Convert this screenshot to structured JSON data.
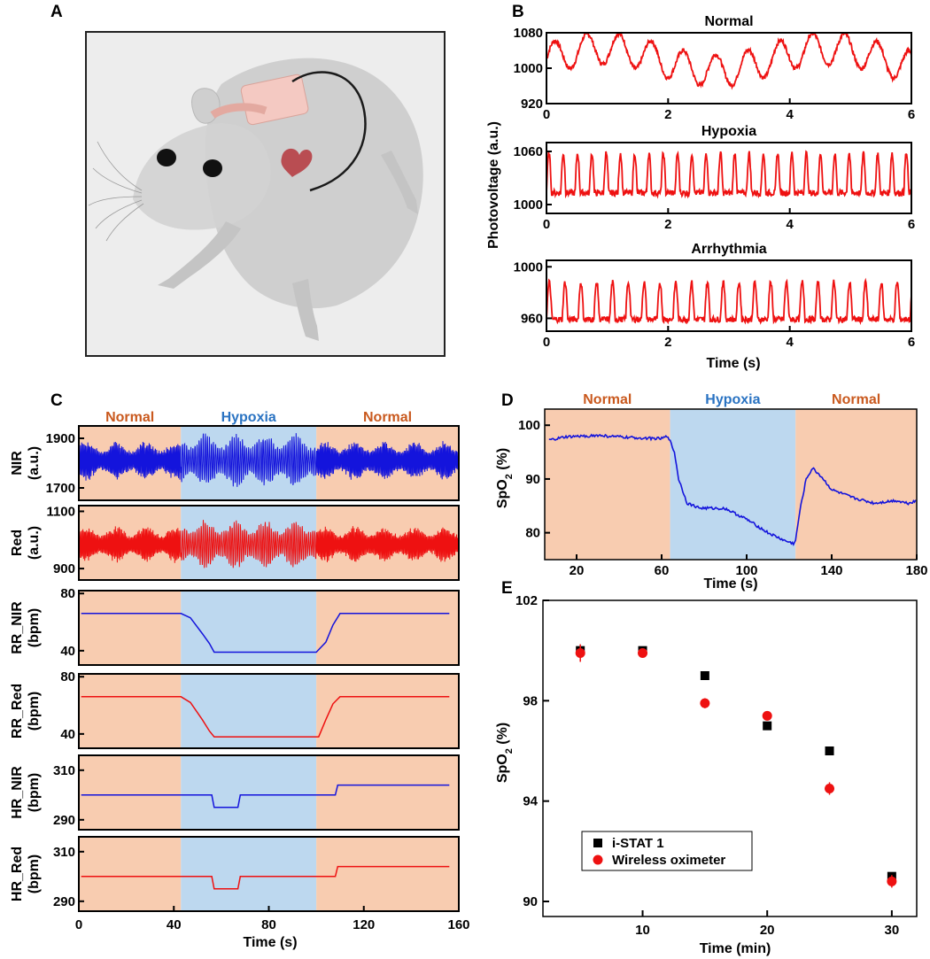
{
  "panel_letters": {
    "a": "A",
    "b": "B",
    "c": "C",
    "d": "D",
    "e": "E"
  },
  "colors": {
    "normal_bg": "#f8ccb0",
    "hypoxia_bg": "#bdd8ef",
    "normal_text": "#c9591e",
    "hypoxia_text": "#2a73c2",
    "nir": "#1414dc",
    "red": "#ee1111"
  },
  "chart_data": [
    {
      "id": "B",
      "type": "line",
      "xlabel": "Time (s)",
      "ylabel": "Photovoltage (a.u.)",
      "xlim": [
        0,
        6
      ],
      "xticks": [
        "0",
        "2",
        "4",
        "6"
      ],
      "subplots": [
        {
          "title": "Normal",
          "ylim": [
            920,
            1080
          ],
          "yticks": [
            "1080",
            "1000",
            "920"
          ],
          "period_s": 0.53,
          "amplitude": 40,
          "baseline": 1040,
          "shape": "irregular"
        },
        {
          "title": "Hypoxia",
          "ylim": [
            990,
            1070
          ],
          "yticks": [
            "1060",
            "1000"
          ],
          "period_s": 0.235,
          "amplitude": 28,
          "baseline": 1030,
          "shape": "pulse"
        },
        {
          "title": "Arrhythmia",
          "ylim": [
            950,
            1005
          ],
          "yticks": [
            "1000",
            "960"
          ],
          "period_s": 0.26,
          "amplitude": 18,
          "baseline": 970,
          "shape": "pulse"
        }
      ]
    },
    {
      "id": "C",
      "type": "line",
      "xlabel": "Time (s)",
      "xlim": [
        0,
        160
      ],
      "xticks": [
        "0",
        "40",
        "80",
        "120",
        "160"
      ],
      "regions": [
        {
          "label": "Normal",
          "start": 0,
          "end": 43
        },
        {
          "label": "Hypoxia",
          "start": 43,
          "end": 100
        },
        {
          "label": "Normal",
          "start": 100,
          "end": 160
        }
      ],
      "subplots": [
        {
          "ylabel": [
            "NIR",
            "(a.u.)"
          ],
          "ylim": [
            1650,
            1950
          ],
          "yticks": [
            "1900",
            "1700"
          ],
          "mean": 1810,
          "amplitude": 70,
          "series": "nir",
          "kind": "osc"
        },
        {
          "ylabel": [
            "Red",
            "(a.u.)"
          ],
          "ylim": [
            860,
            1120
          ],
          "yticks": [
            "1100",
            "900"
          ],
          "mean": 985,
          "amplitude": 55,
          "series": "red",
          "kind": "osc"
        },
        {
          "ylabel": [
            "RR_NIR",
            "(bpm)"
          ],
          "ylim": [
            30,
            82
          ],
          "yticks": [
            "80",
            "40"
          ],
          "series": "nir",
          "kind": "step",
          "points": [
            [
              1,
              66
            ],
            [
              43,
              66
            ],
            [
              47,
              63
            ],
            [
              52,
              52
            ],
            [
              55,
              45
            ],
            [
              57,
              39
            ],
            [
              100,
              39
            ],
            [
              104,
              46
            ],
            [
              107,
              58
            ],
            [
              110,
              66
            ],
            [
              156,
              66
            ]
          ]
        },
        {
          "ylabel": [
            "RR_Red",
            "(bpm)"
          ],
          "ylim": [
            30,
            82
          ],
          "yticks": [
            "80",
            "40"
          ],
          "series": "red",
          "kind": "step",
          "points": [
            [
              1,
              66
            ],
            [
              43,
              66
            ],
            [
              47,
              62
            ],
            [
              52,
              50
            ],
            [
              55,
              42
            ],
            [
              57,
              38
            ],
            [
              101,
              38
            ],
            [
              104,
              50
            ],
            [
              107,
              61
            ],
            [
              110,
              66
            ],
            [
              156,
              66
            ]
          ]
        },
        {
          "ylabel": [
            "HR_NIR",
            "(bpm)"
          ],
          "ylim": [
            286,
            316
          ],
          "yticks": [
            "310",
            "290"
          ],
          "series": "nir",
          "kind": "step",
          "points": [
            [
              1,
              300
            ],
            [
              56,
              300
            ],
            [
              57,
              295
            ],
            [
              67,
              295
            ],
            [
              68,
              300
            ],
            [
              108,
              300
            ],
            [
              109,
              304
            ],
            [
              156,
              304
            ]
          ]
        },
        {
          "ylabel": [
            "HR_Red",
            "(bpm)"
          ],
          "ylim": [
            286,
            316
          ],
          "yticks": [
            "310",
            "290"
          ],
          "series": "red",
          "kind": "step",
          "points": [
            [
              1,
              300
            ],
            [
              56,
              300
            ],
            [
              57,
              295
            ],
            [
              67,
              295
            ],
            [
              68,
              300
            ],
            [
              108,
              300
            ],
            [
              109,
              304
            ],
            [
              156,
              304
            ]
          ]
        }
      ]
    },
    {
      "id": "D",
      "type": "line",
      "xlabel": "Time (s)",
      "ylabel": "SpO2 (%)",
      "ylabel_main": "SpO",
      "ylabel_sub": "2",
      "ylabel_rest": " (%)",
      "xlim": [
        5,
        180
      ],
      "ylim": [
        75,
        103
      ],
      "xticks": [
        "20",
        "60",
        "100",
        "140",
        "180"
      ],
      "yticks": [
        "100",
        "90",
        "80"
      ],
      "regions": [
        {
          "label": "Normal",
          "start": 5,
          "end": 64
        },
        {
          "label": "Hypoxia",
          "start": 64,
          "end": 123
        },
        {
          "label": "Normal",
          "start": 123,
          "end": 180
        }
      ],
      "points": [
        [
          7,
          97.2
        ],
        [
          15,
          97.8
        ],
        [
          30,
          98.1
        ],
        [
          45,
          97.7
        ],
        [
          60,
          97.5
        ],
        [
          63,
          98
        ],
        [
          66,
          95
        ],
        [
          68,
          90
        ],
        [
          72,
          85.5
        ],
        [
          78,
          84.6
        ],
        [
          90,
          84.5
        ],
        [
          100,
          82.5
        ],
        [
          110,
          80
        ],
        [
          118,
          78.5
        ],
        [
          122,
          78
        ],
        [
          123,
          78.5
        ],
        [
          125,
          84
        ],
        [
          128,
          90
        ],
        [
          131,
          92
        ],
        [
          135,
          90.5
        ],
        [
          140,
          88
        ],
        [
          150,
          86.5
        ],
        [
          160,
          85.5
        ],
        [
          170,
          86
        ],
        [
          176,
          85.5
        ],
        [
          180,
          86
        ]
      ]
    },
    {
      "id": "E",
      "type": "scatter",
      "xlabel": "Time (min)",
      "ylabel": "SpO2 (%)",
      "ylabel_main": "SpO",
      "ylabel_sub": "2",
      "ylabel_rest": " (%)",
      "xlim": [
        2,
        32
      ],
      "ylim": [
        89.4,
        102
      ],
      "xticks": [
        "10",
        "20",
        "30"
      ],
      "yticks": [
        "102",
        "98",
        "94",
        "90"
      ],
      "legend_position": "bottom-left",
      "series": [
        {
          "name": "i-STAT 1",
          "marker": "square",
          "color": "#000000",
          "x": [
            5,
            10,
            15,
            20,
            25,
            30
          ],
          "y": [
            100,
            100,
            99,
            97,
            96,
            91
          ]
        },
        {
          "name": "Wireless oximeter",
          "marker": "circle",
          "color": "#ee1111",
          "x": [
            5,
            10,
            15,
            20,
            25,
            30
          ],
          "y": [
            99.9,
            99.9,
            97.9,
            97.4,
            94.5,
            90.8
          ],
          "yerr": [
            0.35,
            0.15,
            0.2,
            0.1,
            0.25,
            0.25
          ]
        }
      ]
    }
  ],
  "illustration": {
    "name": "rat-with-wireless-oximeter"
  }
}
